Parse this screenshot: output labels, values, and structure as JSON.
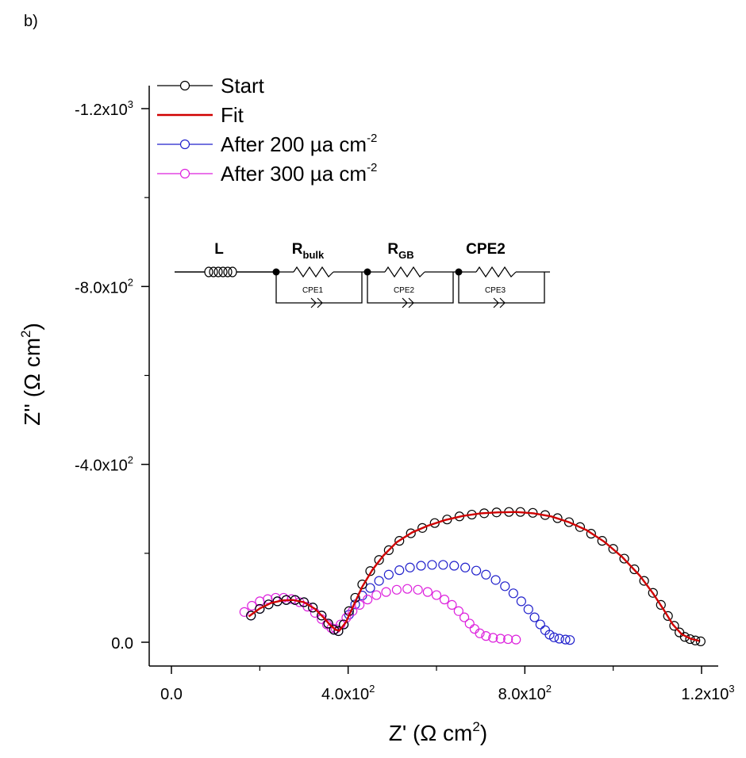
{
  "panel_label": "b)",
  "chart_data": {
    "type": "scatter",
    "xlabel": "Z' (Ω cm²)",
    "ylabel": "Z'' (Ω cm²)",
    "xlim": [
      0,
      1200
    ],
    "ylim": [
      0,
      -1200
    ],
    "x_ticks": [
      {
        "value": 0,
        "base": "0.0",
        "exp": ""
      },
      {
        "value": 400,
        "base": "4.0x10",
        "exp": "2"
      },
      {
        "value": 800,
        "base": "8.0x10",
        "exp": "2"
      },
      {
        "value": 1200,
        "base": "1.2x10",
        "exp": "3"
      }
    ],
    "y_ticks": [
      {
        "value": 0,
        "base": "0.0",
        "exp": ""
      },
      {
        "value": -400,
        "base": "-4.0x10",
        "exp": "2"
      },
      {
        "value": -800,
        "base": "-8.0x10",
        "exp": "2"
      },
      {
        "value": -1200,
        "base": "-1.2x10",
        "exp": "3"
      }
    ],
    "legend": [
      {
        "label": "Start",
        "exp": "",
        "color": "#000000",
        "kind": "marker"
      },
      {
        "label": "Fit",
        "exp": "",
        "color": "#d00000",
        "kind": "line"
      },
      {
        "label": "After 200 µa cm",
        "exp": "-2",
        "color": "#2222cc",
        "kind": "marker"
      },
      {
        "label": "After 300 µa cm",
        "exp": "-2",
        "color": "#dd22dd",
        "kind": "marker"
      }
    ],
    "series": [
      {
        "name": "Start",
        "color": "#000000",
        "points": [
          [
            180,
            -60
          ],
          [
            200,
            -75
          ],
          [
            220,
            -85
          ],
          [
            240,
            -92
          ],
          [
            260,
            -95
          ],
          [
            280,
            -95
          ],
          [
            300,
            -90
          ],
          [
            320,
            -78
          ],
          [
            340,
            -60
          ],
          [
            355,
            -42
          ],
          [
            368,
            -28
          ],
          [
            378,
            -25
          ],
          [
            390,
            -40
          ],
          [
            402,
            -70
          ],
          [
            416,
            -100
          ],
          [
            432,
            -130
          ],
          [
            450,
            -160
          ],
          [
            470,
            -185
          ],
          [
            492,
            -207
          ],
          [
            516,
            -228
          ],
          [
            542,
            -245
          ],
          [
            568,
            -257
          ],
          [
            596,
            -268
          ],
          [
            624,
            -276
          ],
          [
            652,
            -283
          ],
          [
            680,
            -287
          ],
          [
            708,
            -290
          ],
          [
            736,
            -292
          ],
          [
            764,
            -293
          ],
          [
            790,
            -293
          ],
          [
            818,
            -291
          ],
          [
            846,
            -286
          ],
          [
            874,
            -279
          ],
          [
            900,
            -270
          ],
          [
            925,
            -259
          ],
          [
            950,
            -244
          ],
          [
            975,
            -228
          ],
          [
            1000,
            -210
          ],
          [
            1025,
            -188
          ],
          [
            1048,
            -164
          ],
          [
            1070,
            -138
          ],
          [
            1090,
            -111
          ],
          [
            1108,
            -84
          ],
          [
            1124,
            -59
          ],
          [
            1138,
            -37
          ],
          [
            1150,
            -22
          ],
          [
            1162,
            -12
          ],
          [
            1174,
            -7
          ],
          [
            1186,
            -4
          ],
          [
            1198,
            -2
          ]
        ]
      },
      {
        "name": "Fit",
        "color": "#d00000",
        "points": [
          [
            175,
            -58
          ],
          [
            200,
            -76
          ],
          [
            225,
            -88
          ],
          [
            250,
            -94
          ],
          [
            275,
            -95
          ],
          [
            300,
            -90
          ],
          [
            325,
            -75
          ],
          [
            345,
            -55
          ],
          [
            360,
            -38
          ],
          [
            372,
            -28
          ],
          [
            380,
            -26
          ],
          [
            395,
            -45
          ],
          [
            412,
            -82
          ],
          [
            432,
            -125
          ],
          [
            455,
            -163
          ],
          [
            480,
            -195
          ],
          [
            510,
            -225
          ],
          [
            545,
            -247
          ],
          [
            580,
            -262
          ],
          [
            620,
            -275
          ],
          [
            660,
            -284
          ],
          [
            700,
            -290
          ],
          [
            740,
            -292
          ],
          [
            780,
            -293
          ],
          [
            820,
            -290
          ],
          [
            860,
            -283
          ],
          [
            900,
            -270
          ],
          [
            940,
            -252
          ],
          [
            980,
            -226
          ],
          [
            1020,
            -192
          ],
          [
            1060,
            -150
          ],
          [
            1090,
            -110
          ],
          [
            1115,
            -72
          ],
          [
            1135,
            -40
          ],
          [
            1155,
            -18
          ],
          [
            1175,
            -8
          ],
          [
            1195,
            -3
          ]
        ]
      },
      {
        "name": "After 200 µa cm-2",
        "color": "#2222cc",
        "points": [
          [
            180,
            -60
          ],
          [
            200,
            -75
          ],
          [
            220,
            -85
          ],
          [
            240,
            -92
          ],
          [
            260,
            -95
          ],
          [
            280,
            -95
          ],
          [
            300,
            -90
          ],
          [
            320,
            -78
          ],
          [
            340,
            -60
          ],
          [
            355,
            -42
          ],
          [
            368,
            -28
          ],
          [
            378,
            -25
          ],
          [
            390,
            -40
          ],
          [
            402,
            -62
          ],
          [
            416,
            -85
          ],
          [
            432,
            -105
          ],
          [
            450,
            -122
          ],
          [
            470,
            -138
          ],
          [
            492,
            -152
          ],
          [
            516,
            -162
          ],
          [
            540,
            -168
          ],
          [
            565,
            -172
          ],
          [
            590,
            -174
          ],
          [
            615,
            -174
          ],
          [
            640,
            -172
          ],
          [
            665,
            -168
          ],
          [
            690,
            -161
          ],
          [
            712,
            -152
          ],
          [
            734,
            -140
          ],
          [
            755,
            -126
          ],
          [
            774,
            -110
          ],
          [
            792,
            -92
          ],
          [
            808,
            -74
          ],
          [
            822,
            -56
          ],
          [
            835,
            -40
          ],
          [
            846,
            -27
          ],
          [
            856,
            -17
          ],
          [
            866,
            -11
          ],
          [
            878,
            -8
          ],
          [
            892,
            -6
          ],
          [
            902,
            -5
          ]
        ]
      },
      {
        "name": "After 300 µa cm-2",
        "color": "#dd22dd",
        "points": [
          [
            165,
            -68
          ],
          [
            182,
            -82
          ],
          [
            200,
            -92
          ],
          [
            218,
            -97
          ],
          [
            236,
            -100
          ],
          [
            254,
            -100
          ],
          [
            272,
            -97
          ],
          [
            290,
            -90
          ],
          [
            308,
            -80
          ],
          [
            325,
            -66
          ],
          [
            340,
            -52
          ],
          [
            352,
            -40
          ],
          [
            362,
            -32
          ],
          [
            372,
            -30
          ],
          [
            383,
            -40
          ],
          [
            396,
            -55
          ],
          [
            410,
            -70
          ],
          [
            426,
            -84
          ],
          [
            444,
            -96
          ],
          [
            464,
            -106
          ],
          [
            486,
            -113
          ],
          [
            510,
            -118
          ],
          [
            534,
            -120
          ],
          [
            558,
            -118
          ],
          [
            580,
            -113
          ],
          [
            600,
            -106
          ],
          [
            618,
            -96
          ],
          [
            635,
            -84
          ],
          [
            650,
            -70
          ],
          [
            663,
            -56
          ],
          [
            675,
            -42
          ],
          [
            686,
            -30
          ],
          [
            698,
            -20
          ],
          [
            712,
            -14
          ],
          [
            728,
            -10
          ],
          [
            745,
            -8
          ],
          [
            762,
            -7
          ],
          [
            780,
            -6
          ]
        ]
      }
    ]
  },
  "circuit": {
    "elements": [
      {
        "label": "L",
        "sub": ""
      },
      {
        "label": "R",
        "sub": "bulk"
      },
      {
        "label": "R",
        "sub": "GB"
      },
      {
        "label": "CPE2",
        "sub": ""
      }
    ],
    "cpe_labels": [
      "CPE1",
      "CPE2",
      "CPE3"
    ]
  }
}
